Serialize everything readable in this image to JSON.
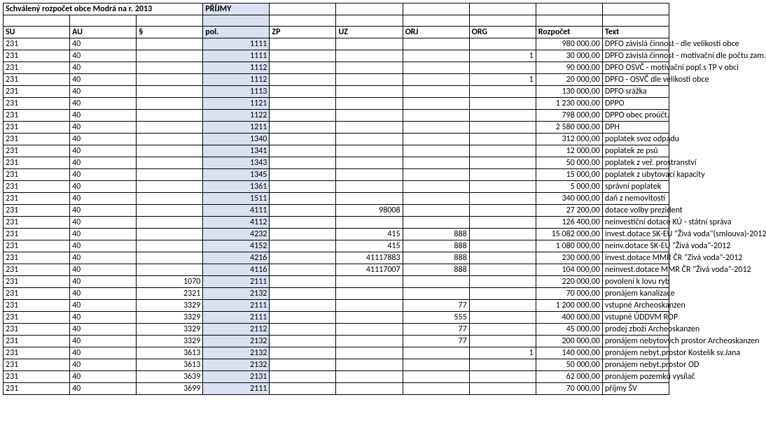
{
  "title": "Schválený rozpočet obce Modrá na r. 2013",
  "titleSuffix": "PŘÍJMY",
  "headers": {
    "su": "SU",
    "au": "AU",
    "par": "§",
    "pol": "pol.",
    "zp": "ZP",
    "uz": "UZ",
    "orj": "ORJ",
    "org": "ORG",
    "rozpocet": "Rozpočet",
    "text": "Text"
  },
  "colors": {
    "polBg": "#d9e1f2",
    "border": "#000000",
    "bg": "#ffffff",
    "fg": "#000000"
  },
  "font": {
    "family": "Calibri, Arial, sans-serif",
    "size": 12,
    "headerWeight": "bold"
  },
  "rows": [
    {
      "su": "231",
      "au": "40",
      "par": "",
      "pol": "1111",
      "zp": "",
      "uz": "",
      "orj": "",
      "org": "",
      "roz": "980 000,00",
      "text": "DPFO  závislá činnost - dle velikosti obce"
    },
    {
      "su": "231",
      "au": "40",
      "par": "",
      "pol": "1111",
      "zp": "",
      "uz": "",
      "orj": "",
      "org": "1",
      "roz": "30 000,00",
      "text": "DPFO závislá činnost - motivační dle počtu zam."
    },
    {
      "su": "231",
      "au": "40",
      "par": "",
      "pol": "1112",
      "zp": "",
      "uz": "",
      "orj": "",
      "org": "",
      "roz": "90 000,00",
      "text": "DPFO OSVČ - motivační popl.s TP v obci"
    },
    {
      "su": "231",
      "au": "40",
      "par": "",
      "pol": "1112",
      "zp": "",
      "uz": "",
      "orj": "",
      "org": "1",
      "roz": "20 000,00",
      "text": "DPFO - OSVČ dle velikosti obce"
    },
    {
      "su": "231",
      "au": "40",
      "par": "",
      "pol": "1113",
      "zp": "",
      "uz": "",
      "orj": "",
      "org": "",
      "roz": "130 000,00",
      "text": "DPFO srážka"
    },
    {
      "su": "231",
      "au": "40",
      "par": "",
      "pol": "1121",
      "zp": "",
      "uz": "",
      "orj": "",
      "org": "",
      "roz": "1 230 000,00",
      "text": "DPPO"
    },
    {
      "su": "231",
      "au": "40",
      "par": "",
      "pol": "1122",
      "zp": "",
      "uz": "",
      "orj": "",
      "org": "",
      "roz": "798 000,00",
      "text": "DPPO obec proúčt."
    },
    {
      "su": "231",
      "au": "40",
      "par": "",
      "pol": "1211",
      "zp": "",
      "uz": "",
      "orj": "",
      "org": "",
      "roz": "2 580 000,00",
      "text": "DPH"
    },
    {
      "su": "231",
      "au": "40",
      "par": "",
      "pol": "1340",
      "zp": "",
      "uz": "",
      "orj": "",
      "org": "",
      "roz": "312 000,00",
      "text": "poplatek svoz odpadu"
    },
    {
      "su": "231",
      "au": "40",
      "par": "",
      "pol": "1341",
      "zp": "",
      "uz": "",
      "orj": "",
      "org": "",
      "roz": "12 000,00",
      "text": "poplatek ze psů"
    },
    {
      "su": "231",
      "au": "40",
      "par": "",
      "pol": "1343",
      "zp": "",
      "uz": "",
      "orj": "",
      "org": "",
      "roz": "50 000,00",
      "text": "poplatek z veř. prostranství"
    },
    {
      "su": "231",
      "au": "40",
      "par": "",
      "pol": "1345",
      "zp": "",
      "uz": "",
      "orj": "",
      "org": "",
      "roz": "15 000,00",
      "text": "poplatek z ubytovací kapacity"
    },
    {
      "su": "231",
      "au": "40",
      "par": "",
      "pol": "1361",
      "zp": "",
      "uz": "",
      "orj": "",
      "org": "",
      "roz": "5 000,00",
      "text": "správní poplatek"
    },
    {
      "su": "231",
      "au": "40",
      "par": "",
      "pol": "1511",
      "zp": "",
      "uz": "",
      "orj": "",
      "org": "",
      "roz": "340 000,00",
      "text": "daň z nemovitostí"
    },
    {
      "su": "231",
      "au": "40",
      "par": "",
      "pol": "4111",
      "zp": "",
      "uz": "98008",
      "orj": "",
      "org": "",
      "roz": "27 200,00",
      "text": "dotace volby prezident"
    },
    {
      "su": "231",
      "au": "40",
      "par": "",
      "pol": "4112",
      "zp": "",
      "uz": "",
      "orj": "",
      "org": "",
      "roz": "126 400,00",
      "text": "neinvestiční dotace KÚ - státní správa"
    },
    {
      "su": "231",
      "au": "40",
      "par": "",
      "pol": "4232",
      "zp": "",
      "uz": "415",
      "orj": "888",
      "org": "",
      "roz": "15 082 000,00",
      "text": "invest.dotace SK-EU \"Živá voda\"(smlouva)-2012"
    },
    {
      "su": "231",
      "au": "40",
      "par": "",
      "pol": "4152",
      "zp": "",
      "uz": "415",
      "orj": "888",
      "org": "",
      "roz": "1 080 000,00",
      "text": "neinv.dotace SK-EU \"Živá voda\"-2012"
    },
    {
      "su": "231",
      "au": "40",
      "par": "",
      "pol": "4216",
      "zp": "",
      "uz": "41117883",
      "orj": "888",
      "org": "",
      "roz": "230 000,00",
      "text": "invest.dotace MMR ČR \"Zivá voda\"-2012"
    },
    {
      "su": "231",
      "au": "40",
      "par": "",
      "pol": "4116",
      "zp": "",
      "uz": "41117007",
      "orj": "888",
      "org": "",
      "roz": "104 000,00",
      "text": "neinvest.dotace MMR ČR \"Živá voda\"-2012"
    },
    {
      "su": "231",
      "au": "40",
      "par": "1070",
      "pol": "2111",
      "zp": "",
      "uz": "",
      "orj": "",
      "org": "",
      "roz": "220 000,00",
      "text": "povolení k lovu ryb"
    },
    {
      "su": "231",
      "au": "40",
      "par": "2321",
      "pol": "2132",
      "zp": "",
      "uz": "",
      "orj": "",
      "org": "",
      "roz": "70 000,00",
      "text": "pronájem kanalizace"
    },
    {
      "su": "231",
      "au": "40",
      "par": "3329",
      "pol": "2111",
      "zp": "",
      "uz": "",
      "orj": "77",
      "org": "",
      "roz": "1 200 000,00",
      "text": "vstupné Archeoskanzen"
    },
    {
      "su": "231",
      "au": "40",
      "par": "3329",
      "pol": "2111",
      "zp": "",
      "uz": "",
      "orj": "555",
      "org": "",
      "roz": "400 000,00",
      "text": "vstupné ÚDDVM ROP"
    },
    {
      "su": "231",
      "au": "40",
      "par": "3329",
      "pol": "2112",
      "zp": "",
      "uz": "",
      "orj": "77",
      "org": "",
      "roz": "45 000,00",
      "text": "prodej zboží Archeoskanzen"
    },
    {
      "su": "231",
      "au": "40",
      "par": "3329",
      "pol": "2132",
      "zp": "",
      "uz": "",
      "orj": "77",
      "org": "",
      "roz": "200 000,00",
      "text": "pronájem nebytových  prostor Archeoskanzen"
    },
    {
      "su": "231",
      "au": "40",
      "par": "3613",
      "pol": "2132",
      "zp": "",
      "uz": "",
      "orj": "",
      "org": "1",
      "roz": "140 000,00",
      "text": "pronájem nebyt.prostor Kostelík sv.Jana"
    },
    {
      "su": "231",
      "au": "40",
      "par": "3613",
      "pol": "2132",
      "zp": "",
      "uz": "",
      "orj": "",
      "org": "",
      "roz": "50 000,00",
      "text": "pronájem nebyt.prostor OD"
    },
    {
      "su": "231",
      "au": "40",
      "par": "3639",
      "pol": "2131",
      "zp": "",
      "uz": "",
      "orj": "",
      "org": "",
      "roz": "62 000,00",
      "text": "pronájem pozemků vysílač"
    },
    {
      "su": "231",
      "au": "40",
      "par": "3699",
      "pol": "2111",
      "zp": "",
      "uz": "",
      "orj": "",
      "org": "",
      "roz": "70 000,00",
      "text": "příjmy ŠV"
    }
  ]
}
